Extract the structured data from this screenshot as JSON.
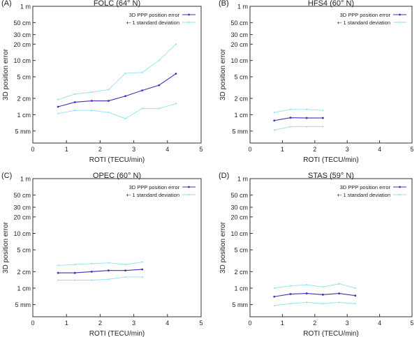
{
  "figure": {
    "y_ticks": [
      {
        "label": "1 m",
        "value": 100
      },
      {
        "label": "50 cm",
        "value": 50
      },
      {
        "label": "30 cm",
        "value": 30
      },
      {
        "label": "20 cm",
        "value": 20
      },
      {
        "label": "10 cm",
        "value": 10
      },
      {
        "label": "5 cm",
        "value": 5
      },
      {
        "label": "2 cm",
        "value": 2
      },
      {
        "label": "1 cm",
        "value": 1
      },
      {
        "label": "5 mm",
        "value": 0.5
      }
    ],
    "x_ticks": [
      "0",
      "1",
      "2",
      "3",
      "4",
      "5"
    ],
    "legend_labels": [
      "3D PPP position error",
      "+- 1 standard deviation"
    ],
    "colors": {
      "main": "#4b2bb8",
      "std": "#8fe3ec",
      "axis": "#333333"
    }
  },
  "chart_data": [
    {
      "type": "line",
      "panel_label": "(A)",
      "title": "FOLC (64° N)",
      "xlabel": "ROTI (TECU/min)",
      "ylabel": "3D position error",
      "xlim": [
        0,
        5
      ],
      "ylim": [
        0.3,
        100
      ],
      "yscale": "log",
      "legend": "top-right",
      "series": [
        {
          "name": "3D PPP position error",
          "x": [
            0.75,
            1.25,
            1.75,
            2.25,
            2.75,
            3.25,
            3.75,
            4.25
          ],
          "values": [
            1.4,
            1.7,
            1.8,
            1.8,
            2.2,
            2.8,
            3.5,
            5.7
          ]
        },
        {
          "name": "+- 1 standard deviation",
          "x": [
            0.75,
            1.25,
            1.75,
            2.25,
            2.75,
            3.25,
            3.75,
            4.25
          ],
          "values": [
            1.9,
            2.4,
            2.6,
            2.9,
            5.8,
            6.0,
            10.0,
            20.0
          ]
        },
        {
          "name": "- 1 standard deviation",
          "x": [
            0.75,
            1.25,
            1.75,
            2.25,
            2.75,
            3.25,
            3.75,
            4.25
          ],
          "values": [
            1.05,
            1.2,
            1.2,
            1.1,
            0.85,
            1.3,
            1.3,
            1.6
          ]
        }
      ]
    },
    {
      "type": "line",
      "panel_label": "(B)",
      "title": "HFS4 (60° N)",
      "xlabel": "ROTI (TECU/min)",
      "ylabel": "3D position error",
      "xlim": [
        0,
        5
      ],
      "ylim": [
        0.3,
        100
      ],
      "yscale": "log",
      "legend": "top-right",
      "series": [
        {
          "name": "3D PPP position error",
          "x": [
            0.75,
            1.25,
            1.75,
            2.25
          ],
          "values": [
            0.78,
            0.88,
            0.87,
            0.87
          ]
        },
        {
          "name": "+- 1 standard deviation",
          "x": [
            0.75,
            1.25,
            1.75,
            2.25
          ],
          "values": [
            1.1,
            1.25,
            1.25,
            1.2
          ]
        },
        {
          "name": "- 1 standard deviation",
          "x": [
            0.75,
            1.25,
            1.75,
            2.25
          ],
          "values": [
            0.52,
            0.6,
            0.6,
            0.6
          ]
        }
      ]
    },
    {
      "type": "line",
      "panel_label": "(C)",
      "title": "OPEC (60° N)",
      "xlabel": "ROTI (TECU/min)",
      "ylabel": "3D position error",
      "xlim": [
        0,
        5
      ],
      "ylim": [
        0.3,
        100
      ],
      "yscale": "log",
      "legend": "top-right",
      "series": [
        {
          "name": "3D PPP position error",
          "x": [
            0.75,
            1.25,
            1.75,
            2.25,
            2.75,
            3.25
          ],
          "values": [
            1.9,
            1.9,
            2.0,
            2.1,
            2.1,
            2.2
          ]
        },
        {
          "name": "+- 1 standard deviation",
          "x": [
            0.75,
            1.25,
            1.75,
            2.25,
            2.75,
            3.25
          ],
          "values": [
            2.6,
            2.7,
            2.8,
            2.9,
            2.7,
            3.0
          ]
        },
        {
          "name": "- 1 standard deviation",
          "x": [
            0.75,
            1.25,
            1.75,
            2.25,
            2.75,
            3.25
          ],
          "values": [
            1.4,
            1.4,
            1.4,
            1.45,
            1.6,
            1.6
          ]
        }
      ]
    },
    {
      "type": "line",
      "panel_label": "(D)",
      "title": "STAS (59° N)",
      "xlabel": "ROTI (TECU/min)",
      "ylabel": "3D position error",
      "xlim": [
        0,
        5
      ],
      "ylim": [
        0.3,
        100
      ],
      "yscale": "log",
      "legend": "top-right",
      "series": [
        {
          "name": "3D PPP position error",
          "x": [
            0.75,
            1.25,
            1.75,
            2.25,
            2.75,
            3.25
          ],
          "values": [
            0.7,
            0.78,
            0.8,
            0.76,
            0.8,
            0.73
          ]
        },
        {
          "name": "+- 1 standard deviation",
          "x": [
            0.75,
            1.25,
            1.75,
            2.25,
            2.75,
            3.25
          ],
          "values": [
            1.0,
            1.1,
            1.15,
            1.05,
            1.2,
            1.0
          ]
        },
        {
          "name": "- 1 standard deviation",
          "x": [
            0.75,
            1.25,
            1.75,
            2.25,
            2.75,
            3.25
          ],
          "values": [
            0.48,
            0.52,
            0.55,
            0.52,
            0.55,
            0.52
          ]
        }
      ]
    }
  ]
}
